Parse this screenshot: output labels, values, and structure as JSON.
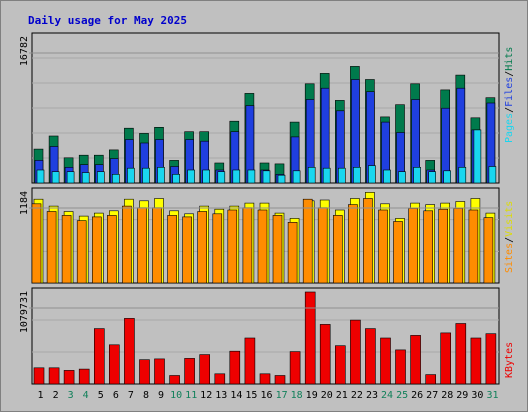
{
  "title": "Daily usage for May 2025",
  "colors": {
    "background": "#c0c0c0",
    "plot_bg": "#c0c0c0",
    "title": "#0000cc",
    "hits": "#007a4c",
    "files": "#1f3fdf",
    "pages": "#19d6ef",
    "visits": "#ffff00",
    "sites": "#ff8c00",
    "kbytes": "#ee0000",
    "day_weekday": "#000000",
    "day_weekend": "#11805a",
    "separator": "#000000"
  },
  "chart_data": [
    {
      "type": "bar",
      "panel": "hits-files-pages",
      "ylim": [
        0,
        16782
      ],
      "ytick_label": "16782",
      "grid": true,
      "legend": {
        "placement": "right",
        "entries": [
          "Pages",
          "Files",
          "Hits"
        ],
        "separator": "/"
      },
      "categories": [
        "1",
        "2",
        "3",
        "4",
        "5",
        "6",
        "7",
        "8",
        "9",
        "10",
        "11",
        "12",
        "13",
        "14",
        "15",
        "16",
        "17",
        "18",
        "19",
        "20",
        "21",
        "22",
        "23",
        "24",
        "25",
        "26",
        "27",
        "28",
        "29",
        "30",
        "31"
      ],
      "series": [
        {
          "name": "Hits",
          "values": [
            3900,
            5400,
            2900,
            3200,
            3200,
            3800,
            6300,
            5700,
            6400,
            2600,
            5900,
            5900,
            2300,
            7100,
            10300,
            2300,
            2200,
            7000,
            11400,
            12600,
            9500,
            13400,
            11900,
            7600,
            9000,
            11400,
            2600,
            10700,
            12400,
            7500,
            9800
          ]
        },
        {
          "name": "Files",
          "values": [
            2600,
            4200,
            1800,
            2100,
            2100,
            2800,
            5000,
            4600,
            5000,
            1900,
            5000,
            4800,
            1500,
            5900,
            8900,
            1500,
            1000,
            5300,
            9600,
            10900,
            8300,
            11900,
            10500,
            7000,
            5800,
            9600,
            1500,
            8600,
            10900,
            6100,
            9200
          ]
        },
        {
          "name": "Pages",
          "values": [
            1500,
            1300,
            1300,
            1200,
            1300,
            1000,
            1700,
            1700,
            1800,
            1000,
            1500,
            1500,
            1300,
            1500,
            1500,
            1400,
            900,
            1400,
            1800,
            1700,
            1700,
            1800,
            2000,
            1500,
            1300,
            1800,
            1300,
            1400,
            1800,
            6100,
            1900
          ]
        }
      ]
    },
    {
      "type": "bar",
      "panel": "visits-sites",
      "ylim": [
        0,
        1184
      ],
      "ytick_label": "1184",
      "grid": true,
      "legend": {
        "placement": "right",
        "entries": [
          "Sites",
          "Visits"
        ],
        "separator": "/"
      },
      "categories": [
        "1",
        "2",
        "3",
        "4",
        "5",
        "6",
        "7",
        "8",
        "9",
        "10",
        "11",
        "12",
        "13",
        "14",
        "15",
        "16",
        "17",
        "18",
        "19",
        "20",
        "21",
        "22",
        "23",
        "24",
        "25",
        "26",
        "27",
        "28",
        "29",
        "30",
        "31"
      ],
      "series": [
        {
          "name": "Visits",
          "values": [
            1090,
            1000,
            930,
            870,
            910,
            940,
            1090,
            1070,
            1100,
            940,
            900,
            1000,
            960,
            1000,
            1040,
            1040,
            910,
            840,
            1070,
            1080,
            950,
            1100,
            1180,
            1030,
            840,
            1040,
            1020,
            1040,
            1060,
            1100,
            910
          ]
        },
        {
          "name": "Sites",
          "values": [
            1030,
            930,
            880,
            810,
            860,
            880,
            1000,
            980,
            980,
            880,
            860,
            930,
            900,
            950,
            980,
            950,
            880,
            790,
            1090,
            980,
            880,
            1020,
            1100,
            950,
            800,
            970,
            940,
            960,
            970,
            950,
            850
          ]
        }
      ]
    },
    {
      "type": "bar",
      "panel": "kbytes",
      "ylim": [
        0,
        1079731
      ],
      "ytick_label": "1079731",
      "grid": true,
      "legend": {
        "placement": "right",
        "entries": [
          "KBytes"
        ]
      },
      "categories": [
        "1",
        "2",
        "3",
        "4",
        "5",
        "6",
        "7",
        "8",
        "9",
        "10",
        "11",
        "12",
        "13",
        "14",
        "15",
        "16",
        "17",
        "18",
        "19",
        "20",
        "21",
        "22",
        "23",
        "24",
        "25",
        "26",
        "27",
        "28",
        "29",
        "30",
        "31"
      ],
      "series": [
        {
          "name": "KBytes",
          "values": [
            190000,
            190000,
            160000,
            175000,
            650000,
            460000,
            770000,
            285000,
            295000,
            100000,
            300000,
            345000,
            120000,
            385000,
            540000,
            120000,
            100000,
            380000,
            1079731,
            700000,
            450000,
            750000,
            650000,
            540000,
            400000,
            570000,
            110000,
            600000,
            710000,
            540000,
            590000
          ]
        }
      ]
    }
  ],
  "day_labels": [
    "1",
    "2",
    "3",
    "4",
    "5",
    "6",
    "7",
    "8",
    "9",
    "10",
    "11",
    "12",
    "13",
    "14",
    "15",
    "16",
    "17",
    "18",
    "19",
    "20",
    "21",
    "22",
    "23",
    "24",
    "25",
    "26",
    "27",
    "28",
    "29",
    "30",
    "31"
  ],
  "weekend_days": [
    "3",
    "4",
    "10",
    "11",
    "17",
    "18",
    "24",
    "25",
    "31"
  ]
}
